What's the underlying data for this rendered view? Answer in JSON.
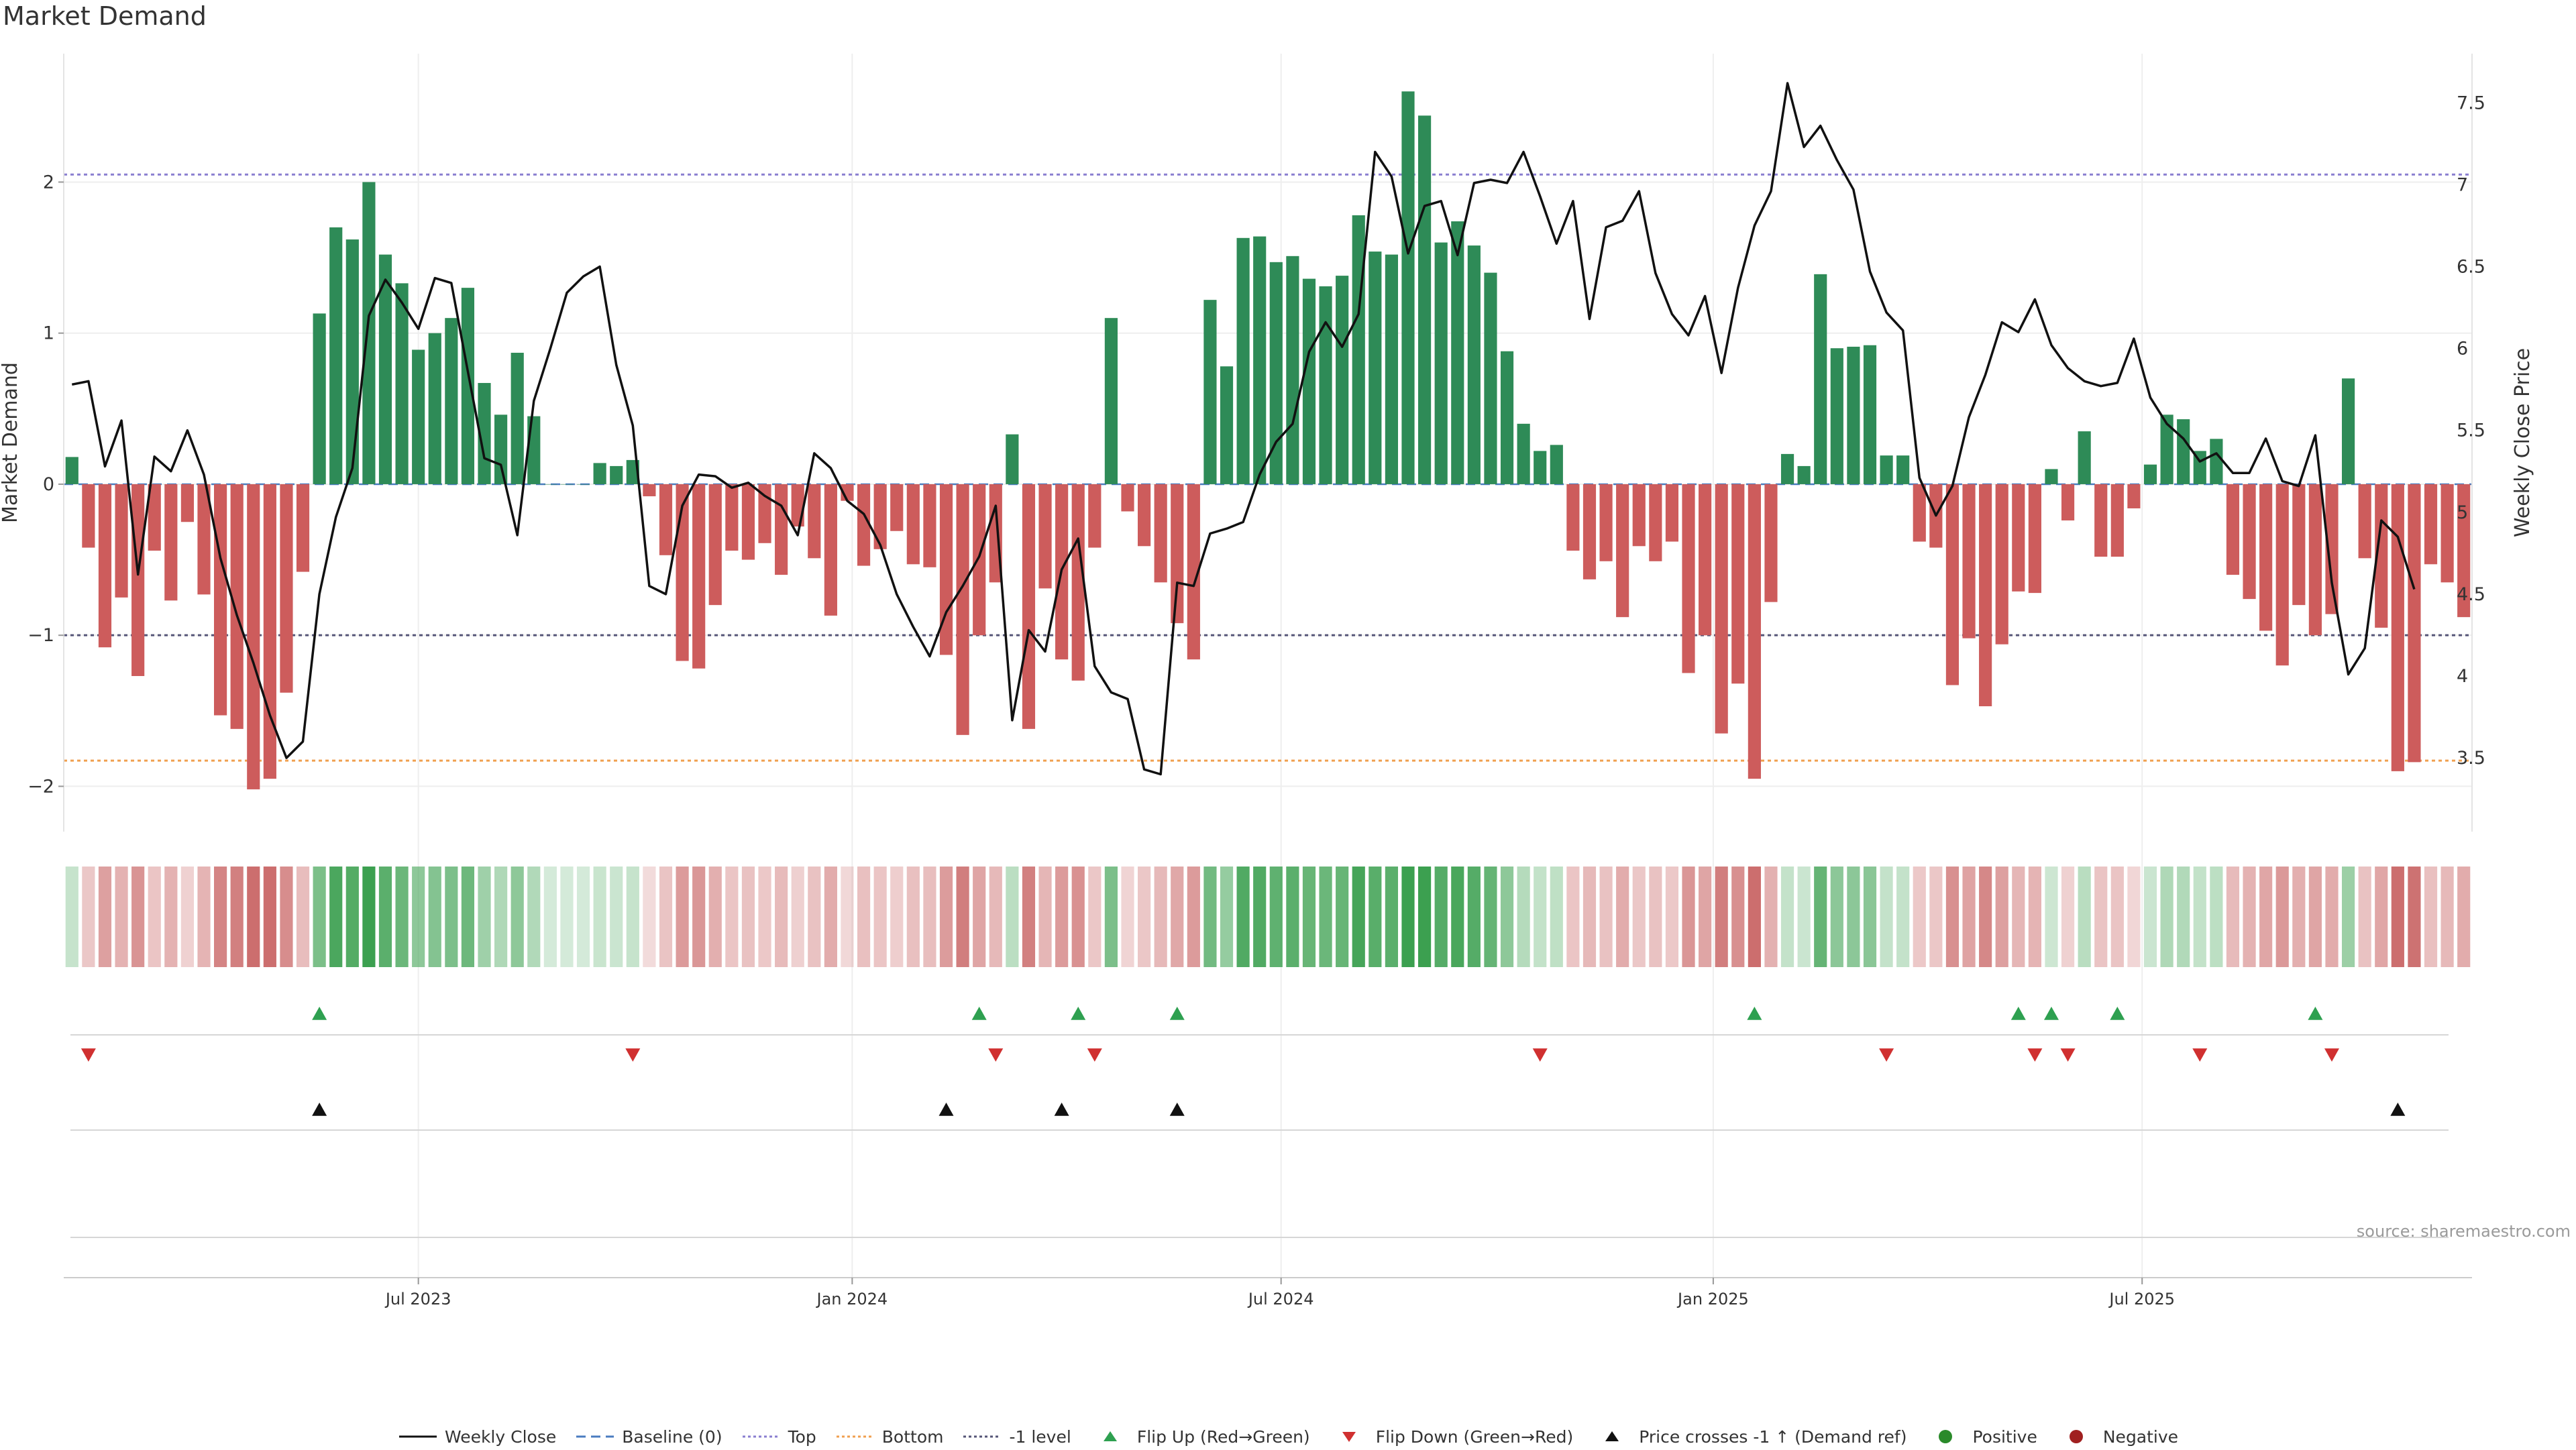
{
  "page": {
    "title": "Market Demand",
    "source": "source: sharemaestro.com"
  },
  "legend": [
    {
      "key": "weekly_close",
      "label": "Weekly Close"
    },
    {
      "key": "baseline",
      "label": "Baseline (0)"
    },
    {
      "key": "top",
      "label": "Top"
    },
    {
      "key": "bottom",
      "label": "Bottom"
    },
    {
      "key": "minus1",
      "label": "-1 level"
    },
    {
      "key": "flip_up",
      "label": "Flip Up (Red→Green)"
    },
    {
      "key": "flip_down",
      "label": "Flip Down (Green→Red)"
    },
    {
      "key": "price_cross",
      "label": "Price crosses -1 ↑ (Demand ref)"
    },
    {
      "key": "positive",
      "label": "Positive"
    },
    {
      "key": "negative",
      "label": "Negative"
    }
  ],
  "colors": {
    "positive": "#2e8b57",
    "negative": "#cd5c5c",
    "price": "#111111",
    "baseline": "#4a7cc0",
    "top": "#8a7fd0",
    "bottom": "#f0a050",
    "minus1": "#555577",
    "flip_up": "#2ea050",
    "flip_down": "#d03030",
    "cross": "#111111",
    "positive_dot": "#2a8a2a",
    "negative_dot": "#a02020"
  },
  "chart_data": {
    "type": "bar+line",
    "title": "Market Demand",
    "ylabel": "Market Demand",
    "y2label": "Weekly Close Price",
    "ylim": [
      -2.3,
      2.85
    ],
    "y2lim": [
      3.05,
      7.8
    ],
    "yticks": [
      -2,
      -1,
      0,
      1,
      2
    ],
    "y2ticks": [
      3.5,
      4,
      4.5,
      5,
      5.5,
      6,
      6.5,
      7,
      7.5
    ],
    "xtick_labels": [
      "Jul 2023",
      "Jan 2024",
      "Jul 2024",
      "Jan 2025",
      "Jul 2025"
    ],
    "xtick_weeks": [
      21,
      47.3,
      73.3,
      99.5,
      125.5
    ],
    "levels": {
      "baseline": 0,
      "top": 2.05,
      "bottom": -1.83,
      "minus1": -1
    },
    "series": [
      {
        "name": "Market Demand (weekly bars)",
        "values": [
          0.18,
          -0.42,
          -1.08,
          -0.75,
          -1.27,
          -0.44,
          -0.77,
          -0.25,
          -0.73,
          -1.53,
          -1.62,
          -2.02,
          -1.95,
          -1.38,
          -0.58,
          1.13,
          1.7,
          1.62,
          2,
          1.52,
          1.33,
          0.89,
          1,
          1.1,
          1.3,
          0.67,
          0.46,
          0.87,
          0.45,
          0,
          0,
          0,
          0.14,
          0.12,
          0.16,
          -0.08,
          -0.47,
          -1.17,
          -1.22,
          -0.8,
          -0.44,
          -0.5,
          -0.39,
          -0.6,
          -0.28,
          -0.49,
          -0.87,
          -0.11,
          -0.54,
          -0.43,
          -0.31,
          -0.53,
          -0.55,
          -1.13,
          -1.66,
          -1,
          -0.65,
          0.33,
          -1.62,
          -0.69,
          -1.16,
          -1.3,
          -0.42,
          1.1,
          -0.18,
          -0.41,
          -0.65,
          -0.92,
          -1.16,
          1.22,
          0.78,
          1.63,
          1.64,
          1.47,
          1.51,
          1.36,
          1.31,
          1.38,
          1.78,
          1.54,
          1.52,
          2.6,
          2.44,
          1.6,
          1.74,
          1.58,
          1.4,
          0.88,
          0.4,
          0.22,
          0.26,
          -0.44,
          -0.63,
          -0.51,
          -0.88,
          -0.41,
          -0.51,
          -0.38,
          -1.25,
          -1,
          -1.65,
          -1.32,
          -1.95,
          -0.78,
          0.2,
          0.12,
          1.39,
          0.9,
          0.91,
          0.92,
          0.19,
          0.19,
          -0.38,
          -0.42,
          -1.33,
          -1.02,
          -1.47,
          -1.06,
          -0.71,
          -0.72,
          0.1,
          -0.24,
          0.35,
          -0.48,
          -0.48,
          -0.16,
          0.13,
          0.46,
          0.43,
          0.22,
          0.3,
          -0.6,
          -0.76,
          -0.97,
          -1.2,
          -0.8,
          -1,
          -0.86,
          0.7,
          -0.49,
          -0.95,
          -1.9,
          -1.84,
          -0.53,
          -0.65,
          -0.88
        ]
      },
      {
        "name": "Weekly Close",
        "values": [
          5.78,
          5.8,
          5.28,
          5.56,
          4.62,
          5.34,
          5.25,
          5.5,
          5.23,
          4.72,
          4.37,
          4.08,
          3.76,
          3.5,
          3.6,
          4.5,
          4.97,
          5.27,
          6.2,
          6.42,
          6.28,
          6.12,
          6.43,
          6.4,
          5.86,
          5.33,
          5.29,
          4.86,
          5.68,
          6,
          6.34,
          6.44,
          6.5,
          5.9,
          5.53,
          4.55,
          4.5,
          5.04,
          5.23,
          5.22,
          5.15,
          5.18,
          5.1,
          5.04,
          4.86,
          5.36,
          5.27,
          5.07,
          4.99,
          4.8,
          4.5,
          4.3,
          4.12,
          4.39,
          4.55,
          4.73,
          5.04,
          3.73,
          4.28,
          4.15,
          4.65,
          4.84,
          4.06,
          3.9,
          3.86,
          3.43,
          3.4,
          4.57,
          4.55,
          4.87,
          4.9,
          4.94,
          5.23,
          5.43,
          5.54,
          5.98,
          6.16,
          6.01,
          6.21,
          7.2,
          7.05,
          6.58,
          6.87,
          6.9,
          6.57,
          7.01,
          7.03,
          7.01,
          7.2,
          6.93,
          6.64,
          6.9,
          6.18,
          6.74,
          6.78,
          6.96,
          6.46,
          6.21,
          6.08,
          6.32,
          5.85,
          6.37,
          6.75,
          6.96,
          7.62,
          7.23,
          7.36,
          7.15,
          6.97,
          6.47,
          6.22,
          6.11,
          5.21,
          4.98,
          5.16,
          5.58,
          5.84,
          6.16,
          6.1,
          6.3,
          6.02,
          5.88,
          5.8,
          5.77,
          5.79,
          6.06,
          5.7,
          5.54,
          5.45,
          5.31,
          5.36,
          5.24,
          5.24,
          5.45,
          5.19,
          5.16,
          5.47,
          4.57,
          4.01,
          4.17,
          4.95,
          4.85,
          4.53
        ]
      },
      {
        "name": "Flip Up (Red→Green)",
        "weeks": [
          15,
          55,
          61,
          67,
          102,
          118,
          120,
          124,
          136
        ]
      },
      {
        "name": "Flip Down (Green→Red)",
        "weeks": [
          1,
          34,
          56,
          62,
          89,
          110,
          119,
          121,
          129,
          137
        ]
      },
      {
        "name": "Price crosses -1 ↑ (Demand ref)",
        "weeks": [
          15,
          53,
          60,
          67,
          141
        ]
      }
    ]
  }
}
